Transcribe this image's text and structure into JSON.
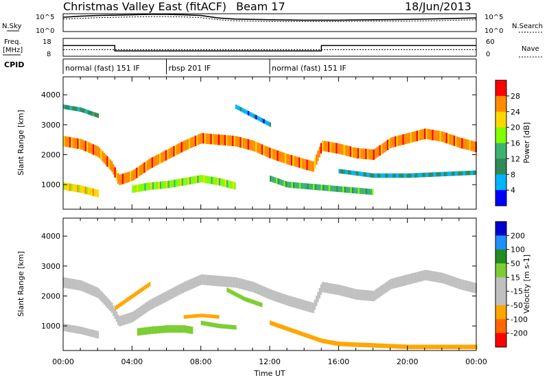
{
  "header": {
    "title": "Christmas Valley East (fitACF)",
    "beam": "Beam 17",
    "date": "18/Jun/2013"
  },
  "noise_panel": {
    "left_label": "N.Sky",
    "right_label": "N.Search",
    "tick_top": "10^5",
    "tick_bottom": "10^0",
    "levels": [
      {
        "x": 0,
        "sky": 4.0,
        "search": 3.5
      },
      {
        "x": 1,
        "sky": 4.3,
        "search": 3.7
      },
      {
        "x": 2,
        "sky": 4.5,
        "search": 3.9
      },
      {
        "x": 3,
        "sky": 4.6,
        "search": 4.0
      },
      {
        "x": 4,
        "sky": 4.7,
        "search": 4.1
      },
      {
        "x": 5,
        "sky": 4.8,
        "search": 4.2
      },
      {
        "x": 6,
        "sky": 4.8,
        "search": 4.2
      },
      {
        "x": 7,
        "sky": 4.7,
        "search": 4.1
      },
      {
        "x": 8,
        "sky": 4.5,
        "search": 3.9
      },
      {
        "x": 9,
        "sky": 3.8,
        "search": 3.3
      },
      {
        "x": 10,
        "sky": 3.5,
        "search": 3.0
      },
      {
        "x": 11,
        "sky": 3.4,
        "search": 2.9
      },
      {
        "x": 12,
        "sky": 3.3,
        "search": 2.8
      },
      {
        "x": 14,
        "sky": 3.2,
        "search": 2.8
      },
      {
        "x": 16,
        "sky": 3.2,
        "search": 2.8
      },
      {
        "x": 18,
        "sky": 3.3,
        "search": 2.9
      },
      {
        "x": 20,
        "sky": 3.4,
        "search": 2.9
      },
      {
        "x": 22,
        "sky": 3.6,
        "search": 3.1
      },
      {
        "x": 24,
        "sky": 3.8,
        "search": 3.3
      }
    ]
  },
  "freq_panel": {
    "left_label_1": "Freq.",
    "left_label_2": "[MHz]",
    "right_label": "Nave",
    "left_ticks": [
      "18",
      "8"
    ],
    "right_ticks": [
      "60",
      "0"
    ],
    "freq_steps": [
      {
        "from": 0,
        "to": 3.0,
        "mhz": 14.0
      },
      {
        "from": 3.0,
        "to": 15.0,
        "mhz": 11.0
      },
      {
        "from": 15.0,
        "to": 24,
        "mhz": 14.0
      }
    ],
    "nave_level": 22
  },
  "cpid": {
    "label": "CPID",
    "segments": [
      {
        "start": 0,
        "end": 6.0,
        "name": "normal (fast) 151 IF"
      },
      {
        "start": 6.0,
        "end": 12.0,
        "name": "rbsp 201 IF"
      },
      {
        "start": 12.0,
        "end": 24,
        "name": "normal (fast) 151 IF"
      }
    ]
  },
  "colors": {
    "power_scale": [
      "#0000ff",
      "#00b4ff",
      "#2e8b57",
      "#3cb371",
      "#7fff00",
      "#ffd700",
      "#ff8c00",
      "#ff0000"
    ],
    "velocity_scale": [
      "#0000cc",
      "#1e90ff",
      "#228b22",
      "#7ccd32",
      "#c0c0c0",
      "#c0c0c0",
      "#ffa500",
      "#ff6600",
      "#ff0000"
    ]
  },
  "chart_data": [
    {
      "type": "heatmap",
      "name": "power",
      "ylabel": "Slant Range [km]",
      "ylim": [
        180,
        4600
      ],
      "yticks": [
        1000,
        2000,
        3000,
        4000
      ],
      "colorbar_label": "Power [dB]",
      "colorbar_ticks": [
        "4",
        "8",
        "12",
        "16",
        "20",
        "24",
        "28"
      ],
      "colorbar_range": [
        0,
        32
      ],
      "bands": [
        {
          "points": [
            [
              0,
              2450
            ],
            [
              1,
              2350
            ],
            [
              2,
              2100
            ],
            [
              2.8,
              1600
            ],
            [
              3.2,
              1150
            ],
            [
              4,
              1300
            ],
            [
              5,
              1700
            ],
            [
              6,
              2000
            ],
            [
              7,
              2300
            ],
            [
              8,
              2550
            ],
            [
              9,
              2500
            ],
            [
              10,
              2450
            ],
            [
              11,
              2300
            ],
            [
              12,
              2050
            ],
            [
              13,
              1850
            ],
            [
              14.5,
              1600
            ],
            [
              15,
              2300
            ],
            [
              16,
              2200
            ],
            [
              17,
              2050
            ],
            [
              18,
              2000
            ],
            [
              19,
              2400
            ],
            [
              20,
              2550
            ],
            [
              21,
              2700
            ],
            [
              22,
              2600
            ],
            [
              23,
              2400
            ],
            [
              24,
              2250
            ]
          ],
          "width": 350,
          "value": 26
        },
        {
          "points": [
            [
              0,
              950
            ],
            [
              1,
              850
            ],
            [
              2,
              700
            ]
          ],
          "width": 250,
          "value": 22
        },
        {
          "points": [
            [
              4,
              850
            ],
            [
              5,
              950
            ],
            [
              6,
              1000
            ],
            [
              7,
              1100
            ],
            [
              8,
              1200
            ],
            [
              9,
              1100
            ],
            [
              10,
              950
            ]
          ],
          "width": 250,
          "value": 18
        },
        {
          "points": [
            [
              12,
              1200
            ],
            [
              13,
              1000
            ],
            [
              14,
              950
            ],
            [
              15,
              900
            ],
            [
              16,
              850
            ],
            [
              17,
              800
            ],
            [
              18,
              750
            ]
          ],
          "width": 200,
          "value": 14
        },
        {
          "points": [
            [
              16,
              1450
            ],
            [
              18,
              1300
            ],
            [
              20,
              1300
            ],
            [
              22,
              1350
            ],
            [
              24,
              1400
            ]
          ],
          "width": 150,
          "value": 8
        },
        {
          "points": [
            [
              0,
              3600
            ],
            [
              1,
              3500
            ],
            [
              2,
              3300
            ]
          ],
          "width": 150,
          "value": 10
        },
        {
          "points": [
            [
              10,
              3600
            ],
            [
              11,
              3300
            ],
            [
              12,
              3000
            ]
          ],
          "width": 150,
          "value": 6
        }
      ]
    },
    {
      "type": "heatmap",
      "name": "velocity",
      "ylabel": "Slant Range [km]",
      "xlabel": "Time UT",
      "ylim": [
        180,
        4600
      ],
      "yticks": [
        1000,
        2000,
        3000,
        4000
      ],
      "xticks": [
        "00:00",
        "04:00",
        "08:00",
        "12:00",
        "16:00",
        "20:00",
        "00:00"
      ],
      "xlim": [
        0,
        24
      ],
      "colorbar_label": "Velocity [m s-1]",
      "colorbar_ticks": [
        "-200",
        "-100",
        "-50",
        "-15",
        "15",
        "50",
        "100",
        "200"
      ],
      "colorbar_range": [
        -250,
        250
      ],
      "bands": [
        {
          "points": [
            [
              0,
              2450
            ],
            [
              1,
              2350
            ],
            [
              2,
              2100
            ],
            [
              2.8,
              1600
            ],
            [
              3.2,
              1150
            ],
            [
              4,
              1300
            ],
            [
              5,
              1700
            ],
            [
              6,
              2000
            ],
            [
              7,
              2300
            ],
            [
              8,
              2550
            ],
            [
              9,
              2500
            ],
            [
              10,
              2450
            ],
            [
              11,
              2300
            ],
            [
              12,
              2050
            ],
            [
              13,
              1850
            ],
            [
              14.5,
              1600
            ],
            [
              15,
              2300
            ],
            [
              16,
              2200
            ],
            [
              17,
              2050
            ],
            [
              18,
              2000
            ],
            [
              19,
              2400
            ],
            [
              20,
              2550
            ],
            [
              21,
              2700
            ],
            [
              22,
              2600
            ],
            [
              23,
              2400
            ],
            [
              24,
              2250
            ]
          ],
          "width": 350,
          "value": 0
        },
        {
          "points": [
            [
              0,
              950
            ],
            [
              1,
              850
            ],
            [
              2,
              700
            ]
          ],
          "width": 250,
          "value": 0
        },
        {
          "points": [
            [
              4.3,
              800
            ],
            [
              5,
              850
            ],
            [
              6,
              900
            ],
            [
              7,
              900
            ],
            [
              7.5,
              850
            ]
          ],
          "width": 250,
          "value": 30
        },
        {
          "points": [
            [
              8,
              1100
            ],
            [
              9,
              1000
            ],
            [
              10,
              950
            ]
          ],
          "width": 150,
          "value": 30
        },
        {
          "points": [
            [
              7,
              1300
            ],
            [
              8,
              1350
            ],
            [
              9,
              1300
            ]
          ],
          "width": 120,
          "value": -60
        },
        {
          "points": [
            [
              12,
              1100
            ],
            [
              13,
              900
            ],
            [
              14,
              700
            ],
            [
              15,
              500
            ],
            [
              16,
              400
            ],
            [
              18,
              350
            ],
            [
              20,
              300
            ],
            [
              22,
              300
            ],
            [
              24,
              300
            ]
          ],
          "width": 150,
          "value": -60
        },
        {
          "points": [
            [
              3,
              1600
            ],
            [
              4,
              2000
            ],
            [
              5,
              2400
            ]
          ],
          "width": 150,
          "value": -60
        },
        {
          "points": [
            [
              9.5,
              2200
            ],
            [
              10.5,
              1900
            ],
            [
              11.5,
              1700
            ]
          ],
          "width": 150,
          "value": 40
        }
      ]
    }
  ]
}
